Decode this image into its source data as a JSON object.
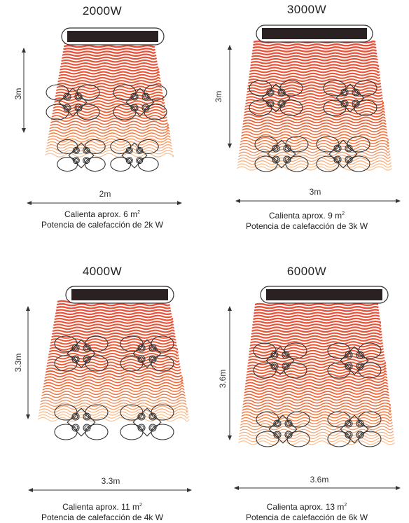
{
  "panels": [
    {
      "title": "2000W",
      "height_label": "3m",
      "width_label": "2m",
      "area_text": "Calienta aprox. 6 m",
      "power_text": "Potencia de calefacción de 2k W"
    },
    {
      "title": "3000W",
      "height_label": "3m",
      "width_label": "3m",
      "area_text": "Calienta aprox. 9 m",
      "power_text": "Potencia de calefacción de 3k W"
    },
    {
      "title": "4000W",
      "height_label": "3.3m",
      "width_label": "3.3m",
      "area_text": "Calienta aprox. 11 m",
      "power_text": "Potencia de calefacción de 4k W"
    },
    {
      "title": "6000W",
      "height_label": "3.6m",
      "width_label": "3.6m",
      "area_text": "Calienta aprox. 13 m",
      "power_text": "Potencia de calefacción de 6k W"
    }
  ],
  "area_unit_exponent": "2",
  "colors": {
    "heat_top": "#e8503a",
    "heat_mid": "#ee5a2e",
    "heat_bottom": "#f5a05a",
    "heater_body": "#2a2222",
    "line": "#333333"
  },
  "icons": [
    "heater-icon",
    "heat-wave-icon",
    "lounge-chair-icon"
  ]
}
